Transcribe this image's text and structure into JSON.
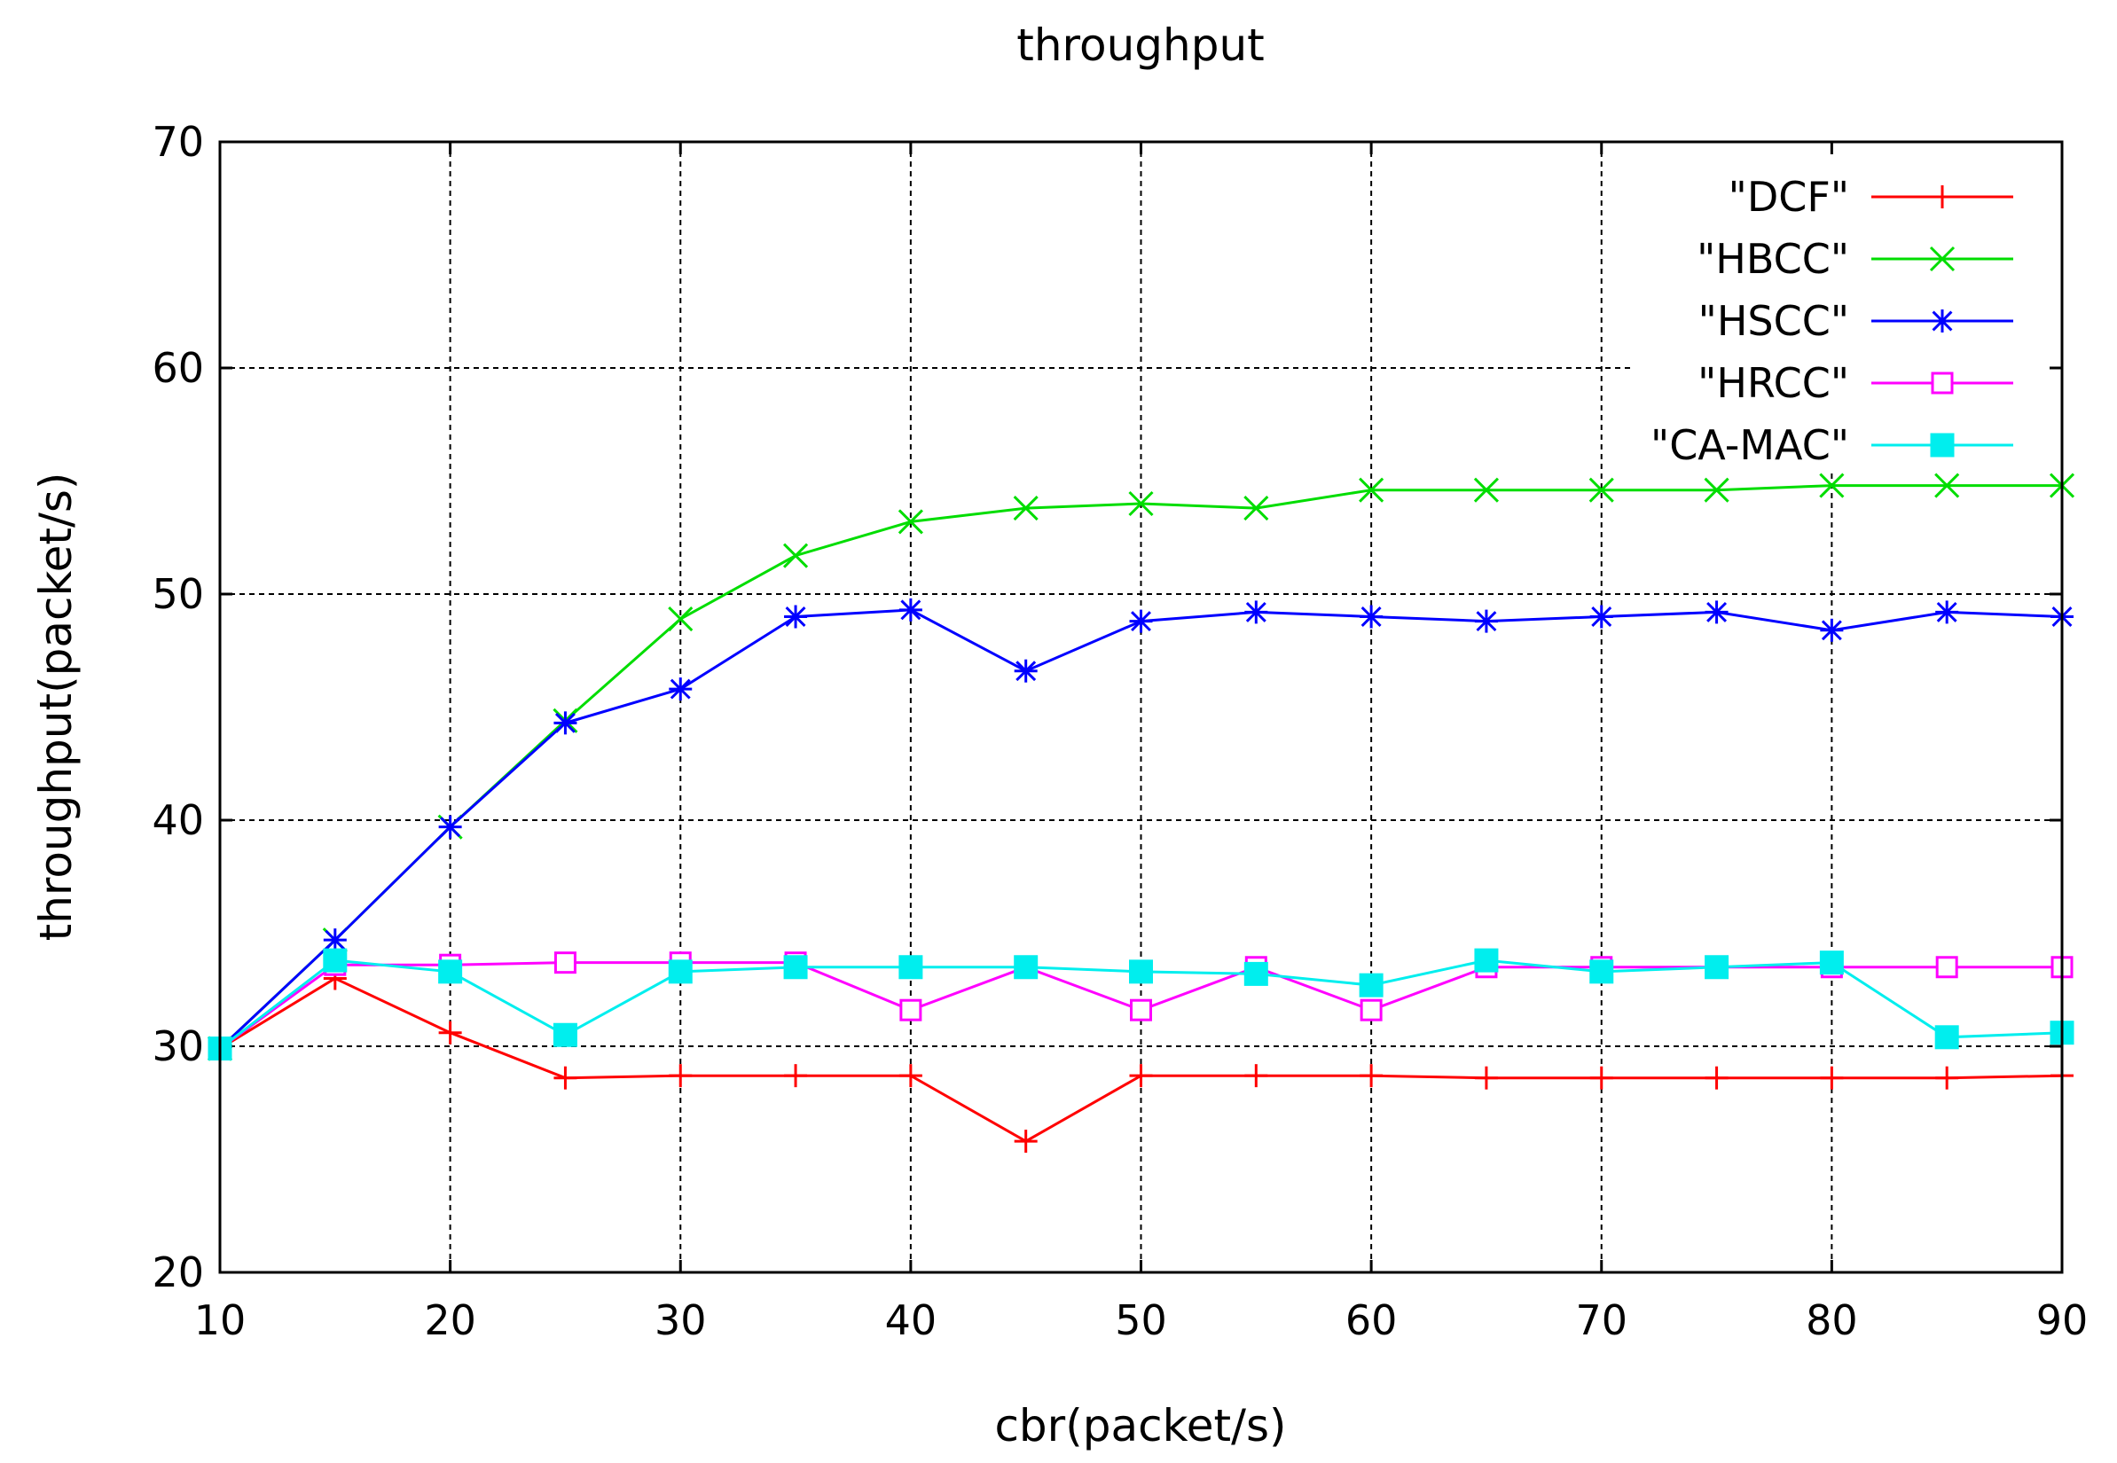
{
  "chart_data": {
    "type": "line",
    "title": "throughput",
    "xlabel": "cbr(packet/s)",
    "ylabel": "throughput(packet/s)",
    "xlim": [
      10,
      90
    ],
    "ylim": [
      20,
      70
    ],
    "xticks": [
      10,
      20,
      30,
      40,
      50,
      60,
      70,
      80,
      90
    ],
    "yticks": [
      20,
      30,
      40,
      50,
      60,
      70
    ],
    "grid": true,
    "legend_position": "top-right",
    "x": [
      10,
      15,
      20,
      25,
      30,
      35,
      40,
      45,
      50,
      55,
      60,
      65,
      70,
      75,
      80,
      85,
      90
    ],
    "series": [
      {
        "name": "\"DCF\"",
        "color": "#ff0000",
        "marker": "plus",
        "values": [
          29.9,
          33.0,
          30.6,
          28.6,
          28.7,
          28.7,
          28.7,
          25.8,
          28.7,
          28.7,
          28.7,
          28.6,
          28.6,
          28.6,
          28.6,
          28.6,
          28.7
        ]
      },
      {
        "name": "\"HBCC\"",
        "color": "#00dd00",
        "marker": "cross",
        "values": [
          29.9,
          34.7,
          39.7,
          44.4,
          48.9,
          51.7,
          53.2,
          53.8,
          54.0,
          53.8,
          54.6,
          54.6,
          54.6,
          54.6,
          54.8,
          54.8,
          54.8
        ]
      },
      {
        "name": "\"HSCC\"",
        "color": "#0000ff",
        "marker": "star",
        "values": [
          29.9,
          34.7,
          39.7,
          44.3,
          45.8,
          49.0,
          49.3,
          46.6,
          48.8,
          49.2,
          49.0,
          48.8,
          49.0,
          49.2,
          48.4,
          49.2,
          49.0
        ]
      },
      {
        "name": "\"HRCC\"",
        "color": "#ff00ff",
        "marker": "open-square",
        "values": [
          29.9,
          33.6,
          33.6,
          33.7,
          33.7,
          33.7,
          31.6,
          33.5,
          31.6,
          33.5,
          31.6,
          33.5,
          33.5,
          33.5,
          33.5,
          33.5,
          33.5
        ]
      },
      {
        "name": "\"CA-MAC\"",
        "color": "#00eeee",
        "marker": "filled-square",
        "values": [
          29.9,
          33.8,
          33.3,
          30.5,
          33.3,
          33.5,
          33.5,
          33.5,
          33.3,
          33.2,
          32.7,
          33.8,
          33.3,
          33.5,
          33.7,
          30.4,
          30.6
        ]
      }
    ]
  }
}
